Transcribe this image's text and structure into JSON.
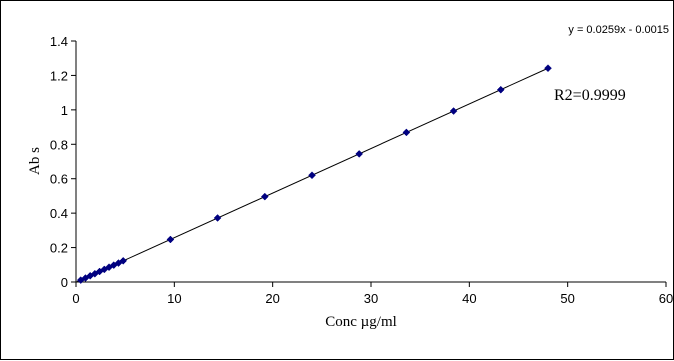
{
  "chart_data": {
    "type": "scatter",
    "title": "",
    "xlabel": "Conc µg/ml",
    "ylabel": "Ab s",
    "xlim": [
      0,
      60
    ],
    "ylim": [
      0,
      1.4
    ],
    "xticks": [
      0,
      10,
      20,
      30,
      40,
      50,
      60
    ],
    "yticks": [
      0,
      0.2,
      0.4,
      0.6,
      0.8,
      1,
      1.2,
      1.4
    ],
    "grid": false,
    "legend": "none",
    "marker_color": "#000080",
    "line_color": "#000000",
    "series": [
      {
        "x": [
          0.48,
          0.96,
          1.44,
          1.92,
          2.4,
          2.88,
          3.36,
          3.84,
          4.32,
          4.8,
          9.6,
          14.4,
          19.2,
          24.0,
          28.8,
          33.6,
          38.4,
          43.2,
          48.0
        ],
        "y": [
          0.011,
          0.023,
          0.036,
          0.048,
          0.061,
          0.073,
          0.086,
          0.098,
          0.11,
          0.123,
          0.247,
          0.372,
          0.496,
          0.62,
          0.744,
          0.869,
          0.993,
          1.117,
          1.242
        ]
      }
    ],
    "trendline": {
      "slope": 0.0259,
      "intercept": -0.0015,
      "x_range": [
        0,
        48
      ]
    },
    "annotations": {
      "equation": "y = 0.0259x - 0.0015",
      "r2": "R2=0.9999"
    }
  }
}
